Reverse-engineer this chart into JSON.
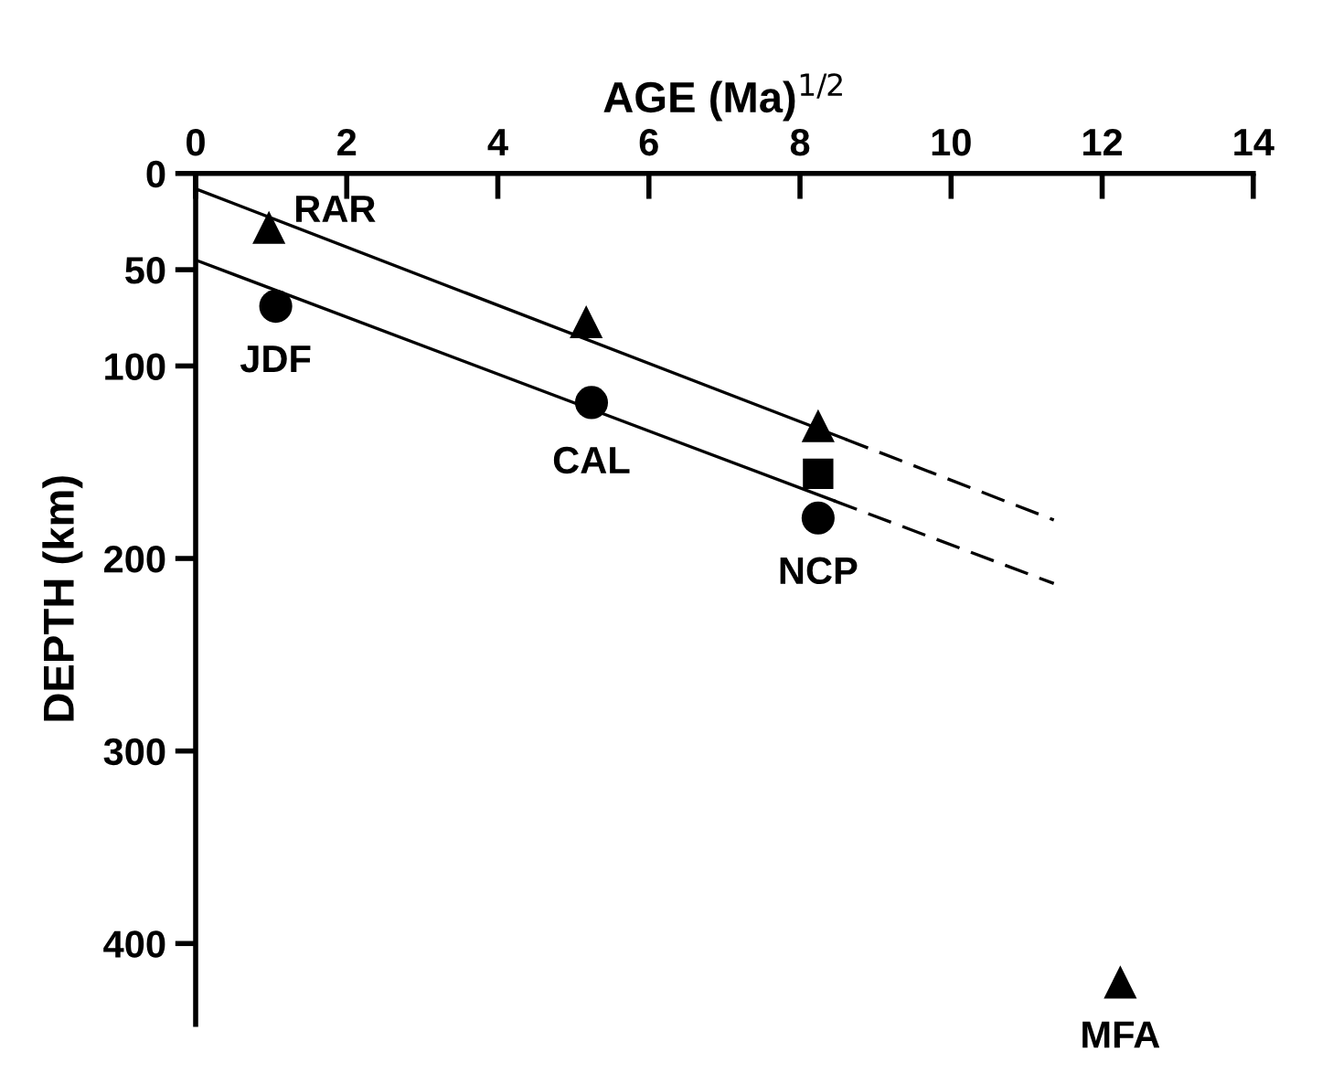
{
  "chart_data": {
    "type": "scatter",
    "xlabel": "AGE (Ma)$^{1/2}$",
    "ylabel": "DEPTH (km)",
    "xlim": [
      0,
      14
    ],
    "ylim": [
      442,
      0
    ],
    "xticks": [
      0,
      2,
      4,
      6,
      8,
      10,
      12,
      14
    ],
    "yticks": [
      0,
      50,
      100,
      200,
      300,
      400
    ],
    "grid": false,
    "series": [
      {
        "type": "line",
        "color": "#000000",
        "x": [
          0,
          8.6
        ],
        "values": [
          8,
          138
        ],
        "line_style": "solid",
        "marker": "none"
      },
      {
        "type": "line",
        "color": "#000000",
        "x": [
          8.6,
          11.36
        ],
        "values": [
          138,
          180
        ],
        "line_style": "dashed",
        "marker": "none"
      },
      {
        "type": "line",
        "color": "#000000",
        "x": [
          0,
          8.45
        ],
        "values": [
          45,
          170
        ],
        "line_style": "solid",
        "marker": "none"
      },
      {
        "type": "line",
        "color": "#000000",
        "x": [
          8.45,
          11.36
        ],
        "values": [
          170,
          213
        ],
        "line_style": "dashed",
        "marker": "none"
      },
      {
        "color": "#000000",
        "marker": "triangle",
        "x": [
          0.97,
          5.17,
          8.24,
          12.24
        ],
        "values": [
          28,
          77,
          131,
          420
        ]
      },
      {
        "color": "#000000",
        "marker": "circle",
        "x": [
          1.06,
          5.24,
          8.24
        ],
        "values": [
          69,
          119,
          179
        ]
      },
      {
        "color": "#000000",
        "marker": "square",
        "x": [
          8.24
        ],
        "values": [
          156
        ]
      }
    ],
    "annotations": [
      {
        "text": "RAR",
        "x": 0.97,
        "y": 28
      },
      {
        "text": "JDF",
        "x": 1.06,
        "y": 69
      },
      {
        "text": "CAL",
        "x": 5.24,
        "y": 119
      },
      {
        "text": "NCP",
        "x": 8.24,
        "y": 179
      },
      {
        "text": "MFA",
        "x": 12.24,
        "y": 420
      }
    ]
  }
}
